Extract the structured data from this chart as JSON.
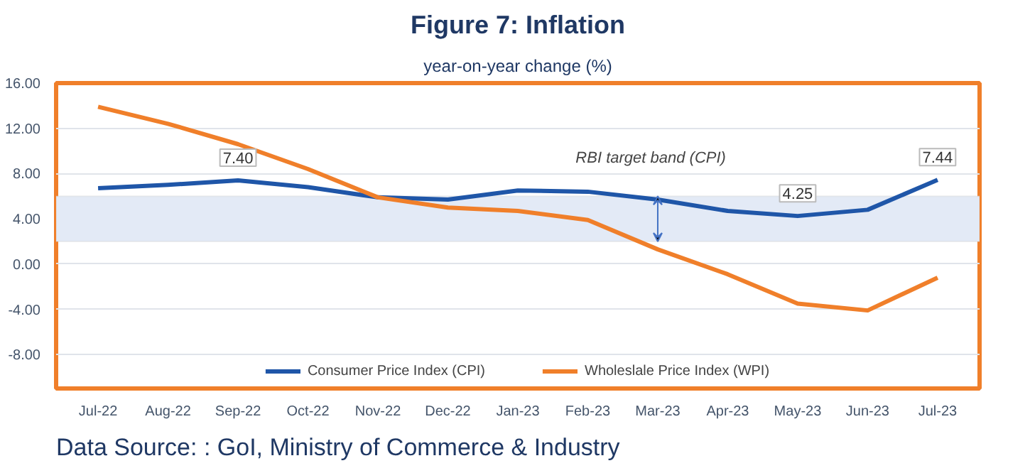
{
  "chart_data": {
    "type": "line",
    "title": "Figure 7: Inflation",
    "subtitle": "year-on-year change (%)",
    "categories": [
      "Jul-22",
      "Aug-22",
      "Sep-22",
      "Oct-22",
      "Nov-22",
      "Dec-22",
      "Jan-23",
      "Feb-23",
      "Mar-23",
      "Apr-23",
      "May-23",
      "Jun-23",
      "Jul-23"
    ],
    "series": [
      {
        "name": "Consumer Price Index (CPI)",
        "color": "#1f56a8",
        "values": [
          6.7,
          7.0,
          7.4,
          6.8,
          5.9,
          5.7,
          6.5,
          6.4,
          5.7,
          4.7,
          4.25,
          4.8,
          7.44
        ],
        "value_labels": [
          null,
          null,
          "7.40",
          null,
          null,
          null,
          null,
          null,
          null,
          null,
          "4.25",
          null,
          "7.44"
        ]
      },
      {
        "name": "Wholeslale Price Index (WPI)",
        "color": "#f07f2a",
        "values": [
          13.9,
          12.4,
          10.6,
          8.4,
          5.9,
          5.0,
          4.7,
          3.9,
          1.3,
          -0.9,
          -3.5,
          -4.1,
          -1.2
        ]
      }
    ],
    "ylim": [
      -11,
      16
    ],
    "yticks": [
      {
        "value": -8,
        "label": "-8.00"
      },
      {
        "value": -4,
        "label": "-4.00"
      },
      {
        "value": 0,
        "label": "0.00"
      },
      {
        "value": 4,
        "label": "4.00"
      },
      {
        "value": 8,
        "label": "8.00"
      },
      {
        "value": 12,
        "label": "12.00"
      },
      {
        "value": 16,
        "label": "16.00"
      }
    ],
    "bands": [
      {
        "axis": "y",
        "from": 2,
        "to": 6,
        "label": "RBI target band (CPI)",
        "color": "#e3eaf6"
      }
    ],
    "annotations": [
      "Data Source: : GoI, Ministry of Commerce & Industry"
    ],
    "grid": "y",
    "legend": "bottom"
  }
}
